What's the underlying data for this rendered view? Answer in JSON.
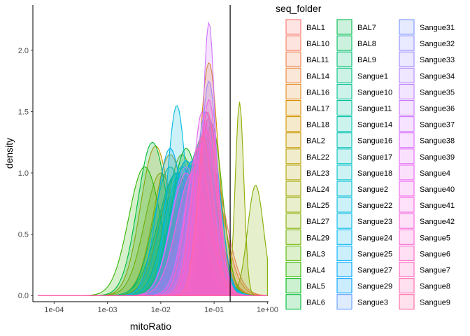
{
  "chart_data": {
    "type": "area",
    "title": "",
    "xlabel": "mitoRatio",
    "ylabel": "density",
    "x_scale": "log10",
    "xlim": [
      4e-05,
      1.05
    ],
    "ylim": [
      -0.05,
      2.37
    ],
    "x_ticks": [
      0.0001,
      0.001,
      0.01,
      0.1,
      1
    ],
    "x_tick_labels": [
      "1e-04",
      "1e-03",
      "1e-02",
      "1e-01",
      "1e+00"
    ],
    "y_ticks": [
      0,
      0.5,
      1,
      1.5,
      2
    ],
    "y_tick_labels": [
      "0.0",
      "0.5",
      "1.0",
      "1.5",
      "2.0"
    ],
    "vline_x": 0.2,
    "grid": false,
    "legend_placement": "right",
    "legend_title": "seq_folder",
    "legend_columns": 3,
    "series": [
      {
        "name": "BAL1",
        "color": "#F8766D",
        "peak": 0.08,
        "height": 1.1,
        "width": 0.3
      },
      {
        "name": "BAL10",
        "color": "#F47A5D",
        "peak": 0.06,
        "height": 1.0,
        "width": 0.3
      },
      {
        "name": "BAL11",
        "color": "#EE7F4C",
        "peak": 0.05,
        "height": 1.05,
        "width": 0.32
      },
      {
        "name": "BAL14",
        "color": "#E8853A",
        "peak": 0.07,
        "height": 1.2,
        "width": 0.3
      },
      {
        "name": "BAL16",
        "color": "#E18A23",
        "peak": 0.03,
        "height": 1.1,
        "width": 0.3
      },
      {
        "name": "BAL17",
        "color": "#D99000",
        "peak": 0.08,
        "height": 1.9,
        "width": 0.18
      },
      {
        "name": "BAL18",
        "color": "#D09400",
        "peak": 0.02,
        "height": 1.0,
        "width": 0.32
      },
      {
        "name": "BAL2",
        "color": "#C69900",
        "peak": 0.008,
        "height": 1.22,
        "width": 0.28
      },
      {
        "name": "BAL22",
        "color": "#BB9E00",
        "peak": 0.015,
        "height": 1.15,
        "width": 0.3
      },
      {
        "name": "BAL23",
        "color": "#AFA200",
        "peak": 0.04,
        "height": 1.0,
        "width": 0.35
      },
      {
        "name": "BAL24",
        "color": "#A1A600",
        "peak": 0.01,
        "height": 1.0,
        "width": 0.3
      },
      {
        "name": "BAL25",
        "color": "#93AA00",
        "peak": 0.3,
        "height": 1.58,
        "width": 0.08
      },
      {
        "name": "BAL27",
        "color": "#81AD00",
        "peak": 0.6,
        "height": 0.9,
        "width": 0.15
      },
      {
        "name": "BAL29",
        "color": "#6EB100",
        "peak": 0.025,
        "height": 1.15,
        "width": 0.3
      },
      {
        "name": "BAL3",
        "color": "#56B400",
        "peak": 0.09,
        "height": 1.4,
        "width": 0.2
      },
      {
        "name": "BAL4",
        "color": "#33B600",
        "peak": 0.005,
        "height": 1.05,
        "width": 0.3
      },
      {
        "name": "BAL5",
        "color": "#00B816",
        "peak": 0.03,
        "height": 1.2,
        "width": 0.28
      },
      {
        "name": "BAL6",
        "color": "#00BA38",
        "peak": 0.007,
        "height": 1.25,
        "width": 0.28
      },
      {
        "name": "BAL7",
        "color": "#00BB4E",
        "peak": 0.04,
        "height": 1.1,
        "width": 0.3
      },
      {
        "name": "BAL8",
        "color": "#00BC61",
        "peak": 0.02,
        "height": 1.0,
        "width": 0.35
      },
      {
        "name": "BAL9",
        "color": "#00BD72",
        "peak": 0.06,
        "height": 1.3,
        "width": 0.25
      },
      {
        "name": "Sangue1",
        "color": "#00BF81",
        "peak": 0.015,
        "height": 1.05,
        "width": 0.3
      },
      {
        "name": "Sangue10",
        "color": "#00C08F",
        "peak": 0.03,
        "height": 1.1,
        "width": 0.28
      },
      {
        "name": "Sangue11",
        "color": "#00C19C",
        "peak": 0.05,
        "height": 1.2,
        "width": 0.25
      },
      {
        "name": "Sangue14",
        "color": "#00C1A8",
        "peak": 0.02,
        "height": 1.0,
        "width": 0.3
      },
      {
        "name": "Sangue16",
        "color": "#00C1B4",
        "peak": 0.07,
        "height": 1.3,
        "width": 0.22
      },
      {
        "name": "Sangue17",
        "color": "#00C0BF",
        "peak": 0.04,
        "height": 1.1,
        "width": 0.28
      },
      {
        "name": "Sangue18",
        "color": "#00BFCA",
        "peak": 0.025,
        "height": 1.05,
        "width": 0.3
      },
      {
        "name": "Sangue2",
        "color": "#00BDD4",
        "peak": 0.06,
        "height": 1.2,
        "width": 0.25
      },
      {
        "name": "Sangue22",
        "color": "#00BBDD",
        "peak": 0.02,
        "height": 1.55,
        "width": 0.18
      },
      {
        "name": "Sangue23",
        "color": "#00B8E6",
        "peak": 0.03,
        "height": 1.1,
        "width": 0.28
      },
      {
        "name": "Sangue24",
        "color": "#00B4EF",
        "peak": 0.05,
        "height": 1.0,
        "width": 0.3
      },
      {
        "name": "Sangue25",
        "color": "#00AFF6",
        "peak": 0.015,
        "height": 1.2,
        "width": 0.25
      },
      {
        "name": "Sangue27",
        "color": "#00A9FD",
        "peak": 0.08,
        "height": 1.45,
        "width": 0.2
      },
      {
        "name": "Sangue29",
        "color": "#00A2FF",
        "peak": 0.04,
        "height": 1.1,
        "width": 0.28
      },
      {
        "name": "Sangue3",
        "color": "#619CFF",
        "peak": 0.07,
        "height": 1.5,
        "width": 0.2
      },
      {
        "name": "Sangue31",
        "color": "#7B96FF",
        "peak": 0.06,
        "height": 1.25,
        "width": 0.22
      },
      {
        "name": "Sangue32",
        "color": "#8F91FF",
        "peak": 0.05,
        "height": 1.15,
        "width": 0.25
      },
      {
        "name": "Sangue33",
        "color": "#A08AFF",
        "peak": 0.08,
        "height": 1.75,
        "width": 0.16
      },
      {
        "name": "Sangue34",
        "color": "#AF84FF",
        "peak": 0.03,
        "height": 1.05,
        "width": 0.28
      },
      {
        "name": "Sangue35",
        "color": "#BC7DFF",
        "peak": 0.06,
        "height": 1.3,
        "width": 0.22
      },
      {
        "name": "Sangue36",
        "color": "#C777FF",
        "peak": 0.04,
        "height": 1.0,
        "width": 0.3
      },
      {
        "name": "Sangue37",
        "color": "#D171FF",
        "peak": 0.08,
        "height": 2.23,
        "width": 0.12
      },
      {
        "name": "Sangue38",
        "color": "#DA6CFD",
        "peak": 0.07,
        "height": 1.4,
        "width": 0.2
      },
      {
        "name": "Sangue39",
        "color": "#E268F8",
        "peak": 0.05,
        "height": 1.1,
        "width": 0.25
      },
      {
        "name": "Sangue4",
        "color": "#E965F2",
        "peak": 0.06,
        "height": 1.5,
        "width": 0.18
      },
      {
        "name": "Sangue40",
        "color": "#F063EC",
        "peak": 0.03,
        "height": 1.0,
        "width": 0.28
      },
      {
        "name": "Sangue41",
        "color": "#F564E3",
        "peak": 0.08,
        "height": 1.6,
        "width": 0.16
      },
      {
        "name": "Sangue42",
        "color": "#F962DB",
        "peak": 0.04,
        "height": 1.0,
        "width": 0.3
      },
      {
        "name": "Sangue5",
        "color": "#FC61D1",
        "peak": 0.07,
        "height": 1.35,
        "width": 0.2
      },
      {
        "name": "Sangue6",
        "color": "#FF61C7",
        "peak": 0.05,
        "height": 1.2,
        "width": 0.22
      },
      {
        "name": "Sangue7",
        "color": "#FF63BC",
        "peak": 0.08,
        "height": 1.45,
        "width": 0.18
      },
      {
        "name": "Sangue8",
        "color": "#FF65AE",
        "peak": 0.06,
        "height": 1.3,
        "width": 0.2
      },
      {
        "name": "Sangue9",
        "color": "#FF67A4",
        "peak": 0.075,
        "height": 1.5,
        "width": 0.17
      }
    ]
  }
}
